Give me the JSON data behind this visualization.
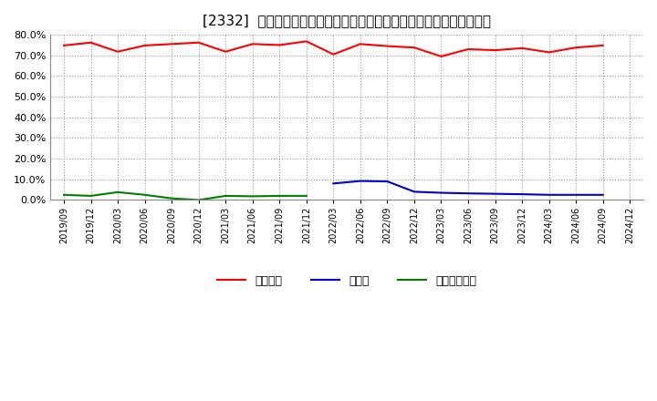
{
  "title": "[2332]  自己資本、のれん、繰延税金資産の総資産に対する比率の推移",
  "x_labels": [
    "2019/09",
    "2019/12",
    "2020/03",
    "2020/06",
    "2020/09",
    "2020/12",
    "2021/03",
    "2021/06",
    "2021/09",
    "2021/12",
    "2022/03",
    "2022/06",
    "2022/09",
    "2022/12",
    "2023/03",
    "2023/06",
    "2023/09",
    "2023/12",
    "2024/03",
    "2024/06",
    "2024/09",
    "2024/12"
  ],
  "equity": [
    74.8,
    76.2,
    71.8,
    74.8,
    75.5,
    76.2,
    71.8,
    75.5,
    75.0,
    76.8,
    70.5,
    75.5,
    74.5,
    73.8,
    69.5,
    73.0,
    72.5,
    73.5,
    71.5,
    73.8,
    74.8,
    null
  ],
  "goodwill": [
    null,
    null,
    null,
    null,
    null,
    null,
    null,
    null,
    null,
    null,
    8.0,
    9.2,
    9.0,
    4.0,
    3.5,
    3.2,
    3.0,
    2.8,
    2.5,
    2.5,
    2.5,
    null
  ],
  "deferred_tax": [
    2.5,
    2.0,
    3.8,
    2.5,
    0.8,
    0.0,
    2.0,
    1.8,
    2.0,
    2.0,
    null,
    null,
    null,
    null,
    null,
    null,
    null,
    null,
    null,
    null,
    null,
    null
  ],
  "equity_color": "#ff0000",
  "goodwill_color": "#0000cc",
  "deferred_tax_color": "#008000",
  "bg_color": "#ffffff",
  "plot_bg_color": "#ffffff",
  "grid_color": "#999999",
  "ylim": [
    0.0,
    80.0
  ],
  "yticks": [
    0.0,
    10.0,
    20.0,
    30.0,
    40.0,
    50.0,
    60.0,
    70.0,
    80.0
  ],
  "legend_equity": "自己資本",
  "legend_goodwill": "のれん",
  "legend_deferred": "繰延税金資産"
}
